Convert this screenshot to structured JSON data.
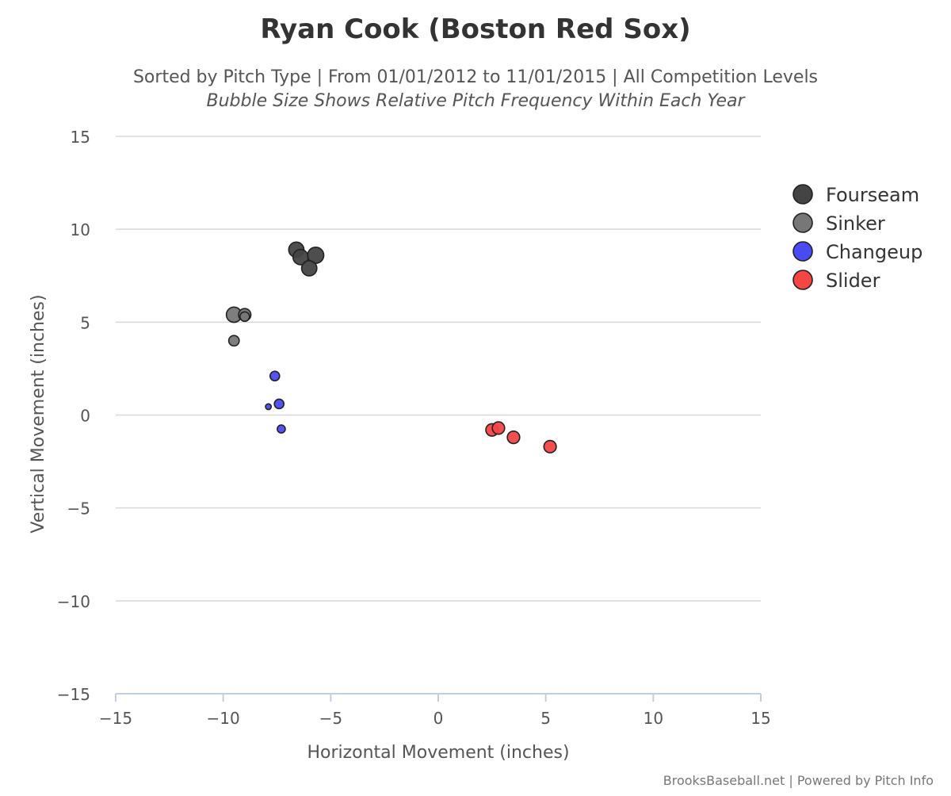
{
  "chart_data": {
    "type": "scatter",
    "title": "Ryan Cook (Boston Red Sox)",
    "subtitle": "Sorted by Pitch Type | From 01/01/2012 to 11/01/2015 | All Competition Levels",
    "subtitle2": "Bubble Size Shows Relative Pitch Frequency Within Each Year",
    "xlabel": "Horizontal Movement (inches)",
    "ylabel": "Vertical Movement (inches)",
    "xlim": [
      -15,
      15
    ],
    "ylim": [
      -15,
      15
    ],
    "xticks": [
      -15,
      -10,
      -5,
      0,
      5,
      10,
      15
    ],
    "yticks": [
      -15,
      -10,
      -5,
      0,
      5,
      10,
      15
    ],
    "xtick_labels": [
      "−15",
      "−10",
      "−5",
      "0",
      "5",
      "10",
      "15"
    ],
    "ytick_labels": [
      "−15",
      "−10",
      "−5",
      "0",
      "5",
      "10",
      "15"
    ],
    "grid": "horizontal",
    "legend_position": "right",
    "credit": "BrooksBaseball.net | Powered by Pitch Info",
    "series": [
      {
        "name": "Fourseam",
        "color": "#444444",
        "points": [
          {
            "x": -6.6,
            "y": 8.9,
            "size": 0.8
          },
          {
            "x": -6.4,
            "y": 8.5,
            "size": 0.8
          },
          {
            "x": -5.7,
            "y": 8.6,
            "size": 0.85
          },
          {
            "x": -6.0,
            "y": 7.9,
            "size": 0.8
          }
        ]
      },
      {
        "name": "Sinker",
        "color": "#777777",
        "points": [
          {
            "x": -9.5,
            "y": 5.4,
            "size": 0.8
          },
          {
            "x": -9.0,
            "y": 5.4,
            "size": 0.65
          },
          {
            "x": -9.0,
            "y": 5.3,
            "size": 0.5
          },
          {
            "x": -9.5,
            "y": 4.0,
            "size": 0.55
          }
        ]
      },
      {
        "name": "Changeup",
        "color": "#4a4af5",
        "points": [
          {
            "x": -7.6,
            "y": 2.1,
            "size": 0.5
          },
          {
            "x": -7.4,
            "y": 0.6,
            "size": 0.5
          },
          {
            "x": -7.9,
            "y": 0.45,
            "size": 0.3
          },
          {
            "x": -7.3,
            "y": -0.75,
            "size": 0.42
          }
        ]
      },
      {
        "name": "Slider",
        "color": "#f54545",
        "points": [
          {
            "x": 2.5,
            "y": -0.8,
            "size": 0.65
          },
          {
            "x": 2.8,
            "y": -0.7,
            "size": 0.65
          },
          {
            "x": 3.5,
            "y": -1.2,
            "size": 0.65
          },
          {
            "x": 5.2,
            "y": -1.7,
            "size": 0.65
          }
        ]
      }
    ]
  }
}
